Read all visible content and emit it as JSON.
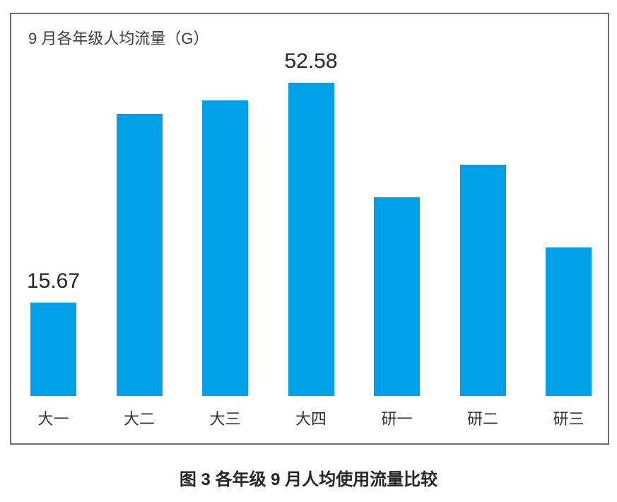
{
  "chart_data": {
    "type": "bar",
    "title": "9 月各年级人均流量（G）",
    "categories": [
      "大一",
      "大二",
      "大三",
      "大四",
      "研一",
      "研二",
      "研三"
    ],
    "values": [
      15.67,
      47.3,
      49.6,
      52.58,
      33.3,
      38.8,
      24.9
    ],
    "data_labels": [
      "15.67",
      null,
      null,
      "52.58",
      null,
      null,
      null
    ],
    "xlabel": "",
    "ylabel": "",
    "ylim": [
      0,
      58
    ],
    "grid": false,
    "legend": false,
    "bar_color": "#00A0E9",
    "frame_border_color": "#6f6f6f"
  },
  "caption": "图 3 各年级 9 月人均使用流量比较"
}
